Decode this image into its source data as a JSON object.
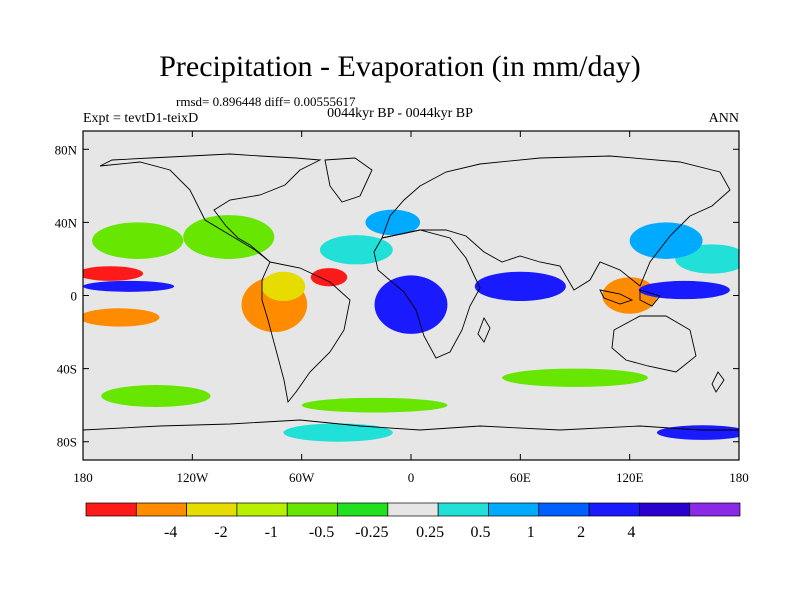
{
  "title": "Precipitation - Evaporation (in mm/day)",
  "stats": "rmsd= 0.896448  diff= 0.00555617",
  "subtitle": "0044kyr BP - 0044kyr BP",
  "left_label": "Expt = tevtD1-teixD",
  "right_label": "ANN",
  "lat_ticks": [
    "80N",
    "40N",
    "0",
    "40S",
    "80S"
  ],
  "lon_ticks": [
    "180",
    "120W",
    "60W",
    "0",
    "60E",
    "120E",
    "180"
  ],
  "colorbar": {
    "labels": [
      "-4",
      "-2",
      "-1",
      "-0.5",
      "-0.25",
      "0.25",
      "0.5",
      "1",
      "2",
      "4"
    ],
    "colors": [
      "#ff1a1a",
      "#ff8c00",
      "#e6dc00",
      "#b8f000",
      "#66e600",
      "#20e020",
      "#e6e6e6",
      "#20e0d8",
      "#00aaff",
      "#0060ff",
      "#1a1aff",
      "#2a00d0",
      "#8a2ae6"
    ]
  },
  "chart_data": {
    "type": "map",
    "lon_range": [
      -180,
      180
    ],
    "lat_range": [
      -90,
      90
    ],
    "blobs": [
      {
        "lon": -165,
        "lat": 12,
        "rx": 18,
        "ry": 4,
        "color": "#ff1a1a"
      },
      {
        "lon": -155,
        "lat": 5,
        "rx": 25,
        "ry": 3,
        "color": "#1a1aff"
      },
      {
        "lon": -160,
        "lat": -12,
        "rx": 22,
        "ry": 5,
        "color": "#ff8c00"
      },
      {
        "lon": -150,
        "lat": 30,
        "rx": 25,
        "ry": 10,
        "color": "#66e600"
      },
      {
        "lon": -100,
        "lat": 32,
        "rx": 25,
        "ry": 12,
        "color": "#66e600"
      },
      {
        "lon": -75,
        "lat": -5,
        "rx": 18,
        "ry": 15,
        "color": "#ff8c00"
      },
      {
        "lon": -70,
        "lat": 5,
        "rx": 12,
        "ry": 8,
        "color": "#e6dc00"
      },
      {
        "lon": -45,
        "lat": 10,
        "rx": 10,
        "ry": 5,
        "color": "#ff1a1a"
      },
      {
        "lon": -30,
        "lat": 25,
        "rx": 20,
        "ry": 8,
        "color": "#20e0d8"
      },
      {
        "lon": -10,
        "lat": 40,
        "rx": 15,
        "ry": 7,
        "color": "#00aaff"
      },
      {
        "lon": 0,
        "lat": -5,
        "rx": 20,
        "ry": 16,
        "color": "#1a1aff"
      },
      {
        "lon": 60,
        "lat": 5,
        "rx": 25,
        "ry": 8,
        "color": "#1a1aff"
      },
      {
        "lon": 120,
        "lat": 0,
        "rx": 15,
        "ry": 10,
        "color": "#ff8c00"
      },
      {
        "lon": 150,
        "lat": 3,
        "rx": 25,
        "ry": 5,
        "color": "#1a1aff"
      },
      {
        "lon": 165,
        "lat": 20,
        "rx": 20,
        "ry": 8,
        "color": "#20e0d8"
      },
      {
        "lon": 140,
        "lat": 30,
        "rx": 20,
        "ry": 10,
        "color": "#00aaff"
      },
      {
        "lon": -20,
        "lat": -60,
        "rx": 40,
        "ry": 4,
        "color": "#66e600"
      },
      {
        "lon": 90,
        "lat": -45,
        "rx": 40,
        "ry": 5,
        "color": "#66e600"
      },
      {
        "lon": -140,
        "lat": -55,
        "rx": 30,
        "ry": 6,
        "color": "#66e600"
      },
      {
        "lon": -40,
        "lat": -75,
        "rx": 30,
        "ry": 5,
        "color": "#20e0d8"
      },
      {
        "lon": 160,
        "lat": -75,
        "rx": 25,
        "ry": 4,
        "color": "#1a1aff"
      }
    ]
  }
}
